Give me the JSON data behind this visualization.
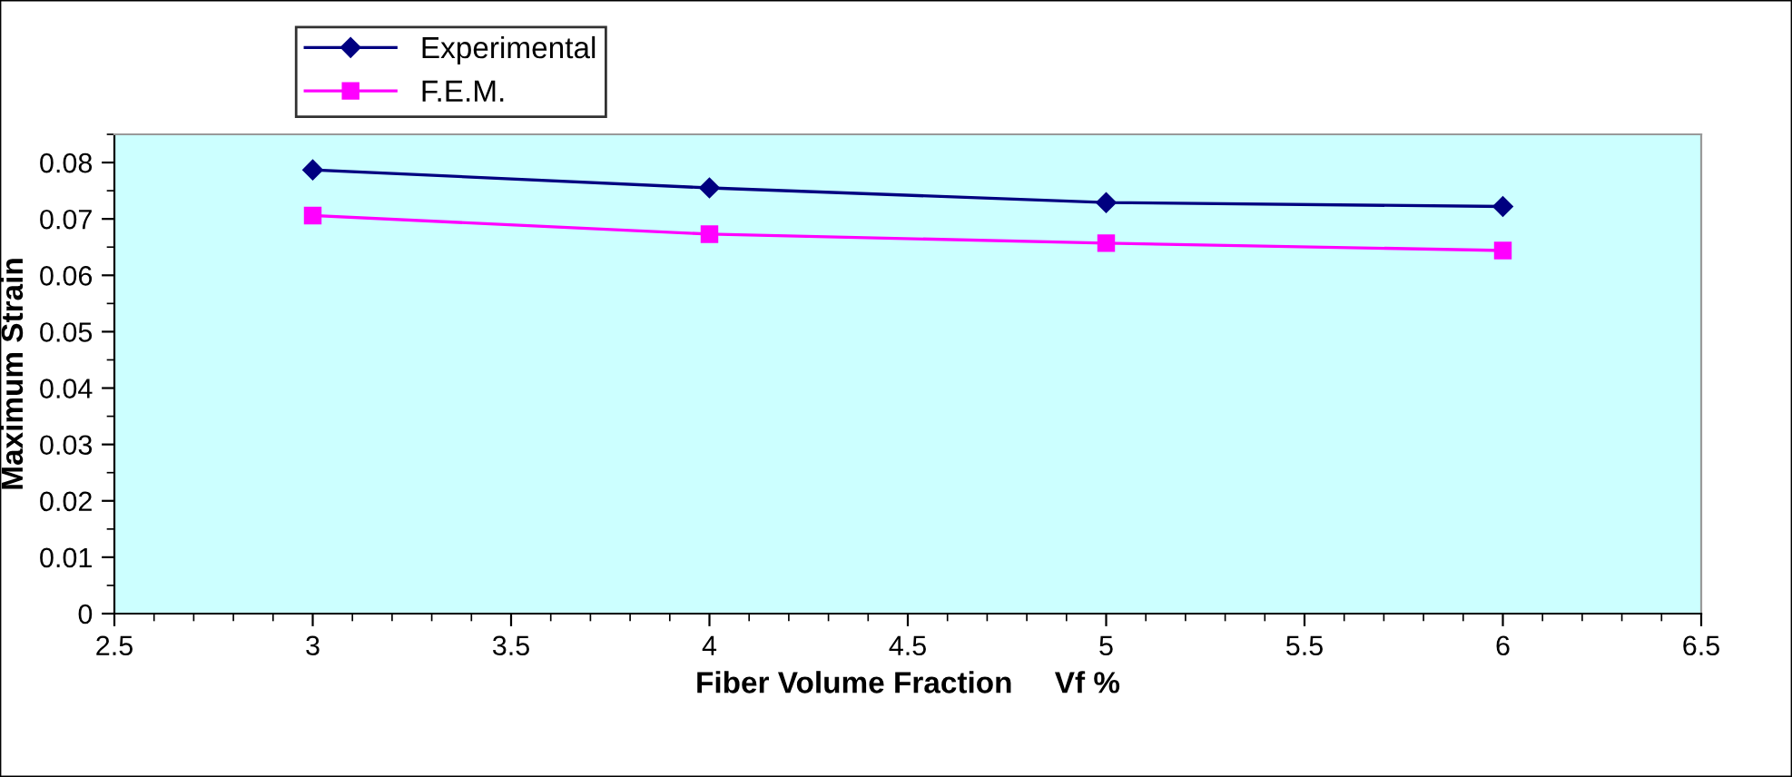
{
  "chart_data": {
    "type": "line",
    "xlabel": "Fiber Volume Fraction     Vf %",
    "ylabel": "Maximum Strain",
    "x": [
      3,
      4,
      5,
      6
    ],
    "series": [
      {
        "name": "Experimental",
        "color": "#000080",
        "marker": "diamond",
        "values": [
          0.0787,
          0.0755,
          0.0729,
          0.0722
        ]
      },
      {
        "name": "F.E.M.",
        "color": "#ff00ff",
        "marker": "square",
        "values": [
          0.0706,
          0.0673,
          0.0657,
          0.0644
        ]
      }
    ],
    "xlim": [
      2.5,
      6.5
    ],
    "xticks": [
      2.5,
      3,
      3.5,
      4,
      4.5,
      5,
      5.5,
      6,
      6.5
    ],
    "ylim": [
      0,
      0.085
    ],
    "yticks": [
      0,
      0.01,
      0.02,
      0.03,
      0.04,
      0.05,
      0.06,
      0.07,
      0.08
    ],
    "grid": false,
    "legend": "top left",
    "line_style": "solid"
  }
}
